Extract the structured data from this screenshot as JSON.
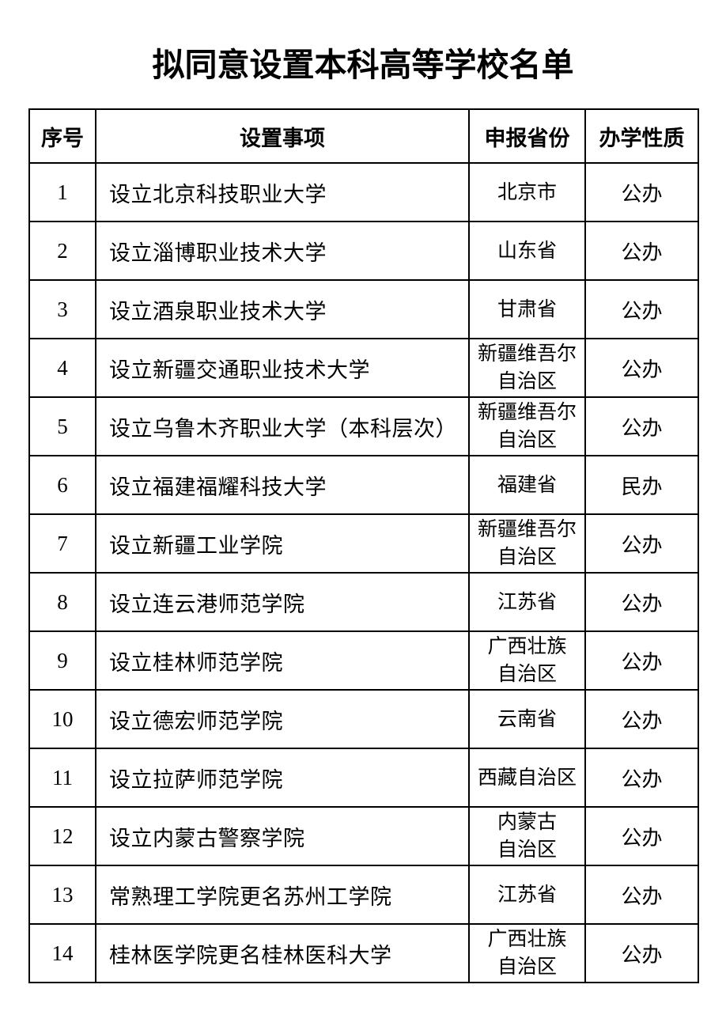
{
  "title": "拟同意设置本科高等学校名单",
  "table": {
    "headers": {
      "no": "序号",
      "matter": "设置事项",
      "province": "申报省份",
      "nature": "办学性质"
    },
    "rows": [
      {
        "no": "1",
        "matter": "设立北京科技职业大学",
        "province": "北京市",
        "nature": "公办"
      },
      {
        "no": "2",
        "matter": "设立淄博职业技术大学",
        "province": "山东省",
        "nature": "公办"
      },
      {
        "no": "3",
        "matter": "设立酒泉职业技术大学",
        "province": "甘肃省",
        "nature": "公办"
      },
      {
        "no": "4",
        "matter": "设立新疆交通职业技术大学",
        "province": "新疆维吾尔\n自治区",
        "nature": "公办"
      },
      {
        "no": "5",
        "matter": "设立乌鲁木齐职业大学（本科层次）",
        "province": "新疆维吾尔\n自治区",
        "nature": "公办"
      },
      {
        "no": "6",
        "matter": "设立福建福耀科技大学",
        "province": "福建省",
        "nature": "民办"
      },
      {
        "no": "7",
        "matter": "设立新疆工业学院",
        "province": "新疆维吾尔\n自治区",
        "nature": "公办"
      },
      {
        "no": "8",
        "matter": "设立连云港师范学院",
        "province": "江苏省",
        "nature": "公办"
      },
      {
        "no": "9",
        "matter": "设立桂林师范学院",
        "province": "广西壮族\n自治区",
        "nature": "公办"
      },
      {
        "no": "10",
        "matter": "设立德宏师范学院",
        "province": "云南省",
        "nature": "公办"
      },
      {
        "no": "11",
        "matter": "设立拉萨师范学院",
        "province": "西藏自治区",
        "nature": "公办"
      },
      {
        "no": "12",
        "matter": "设立内蒙古警察学院",
        "province": "内蒙古\n自治区",
        "nature": "公办"
      },
      {
        "no": "13",
        "matter": "常熟理工学院更名苏州工学院",
        "province": "江苏省",
        "nature": "公办"
      },
      {
        "no": "14",
        "matter": "桂林医学院更名桂林医科大学",
        "province": "广西壮族\n自治区",
        "nature": "公办"
      }
    ]
  }
}
